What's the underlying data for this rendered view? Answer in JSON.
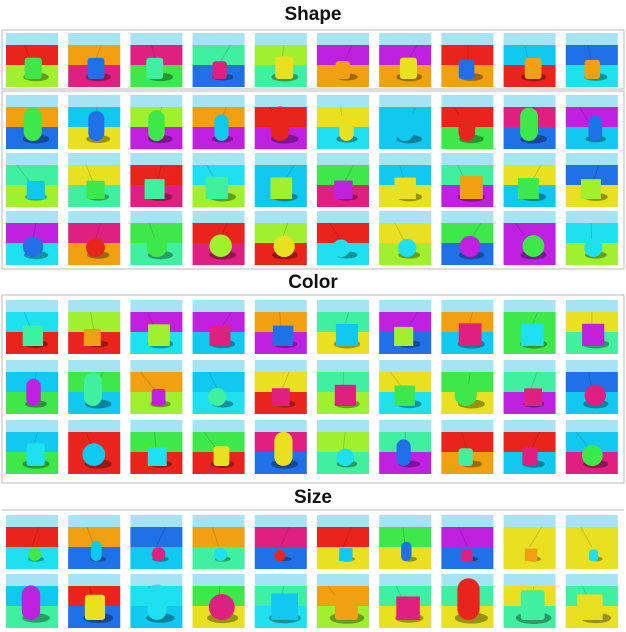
{
  "sections": [
    {
      "title": "Shape"
    },
    {
      "title": "Color"
    },
    {
      "title": "Size"
    }
  ]
}
